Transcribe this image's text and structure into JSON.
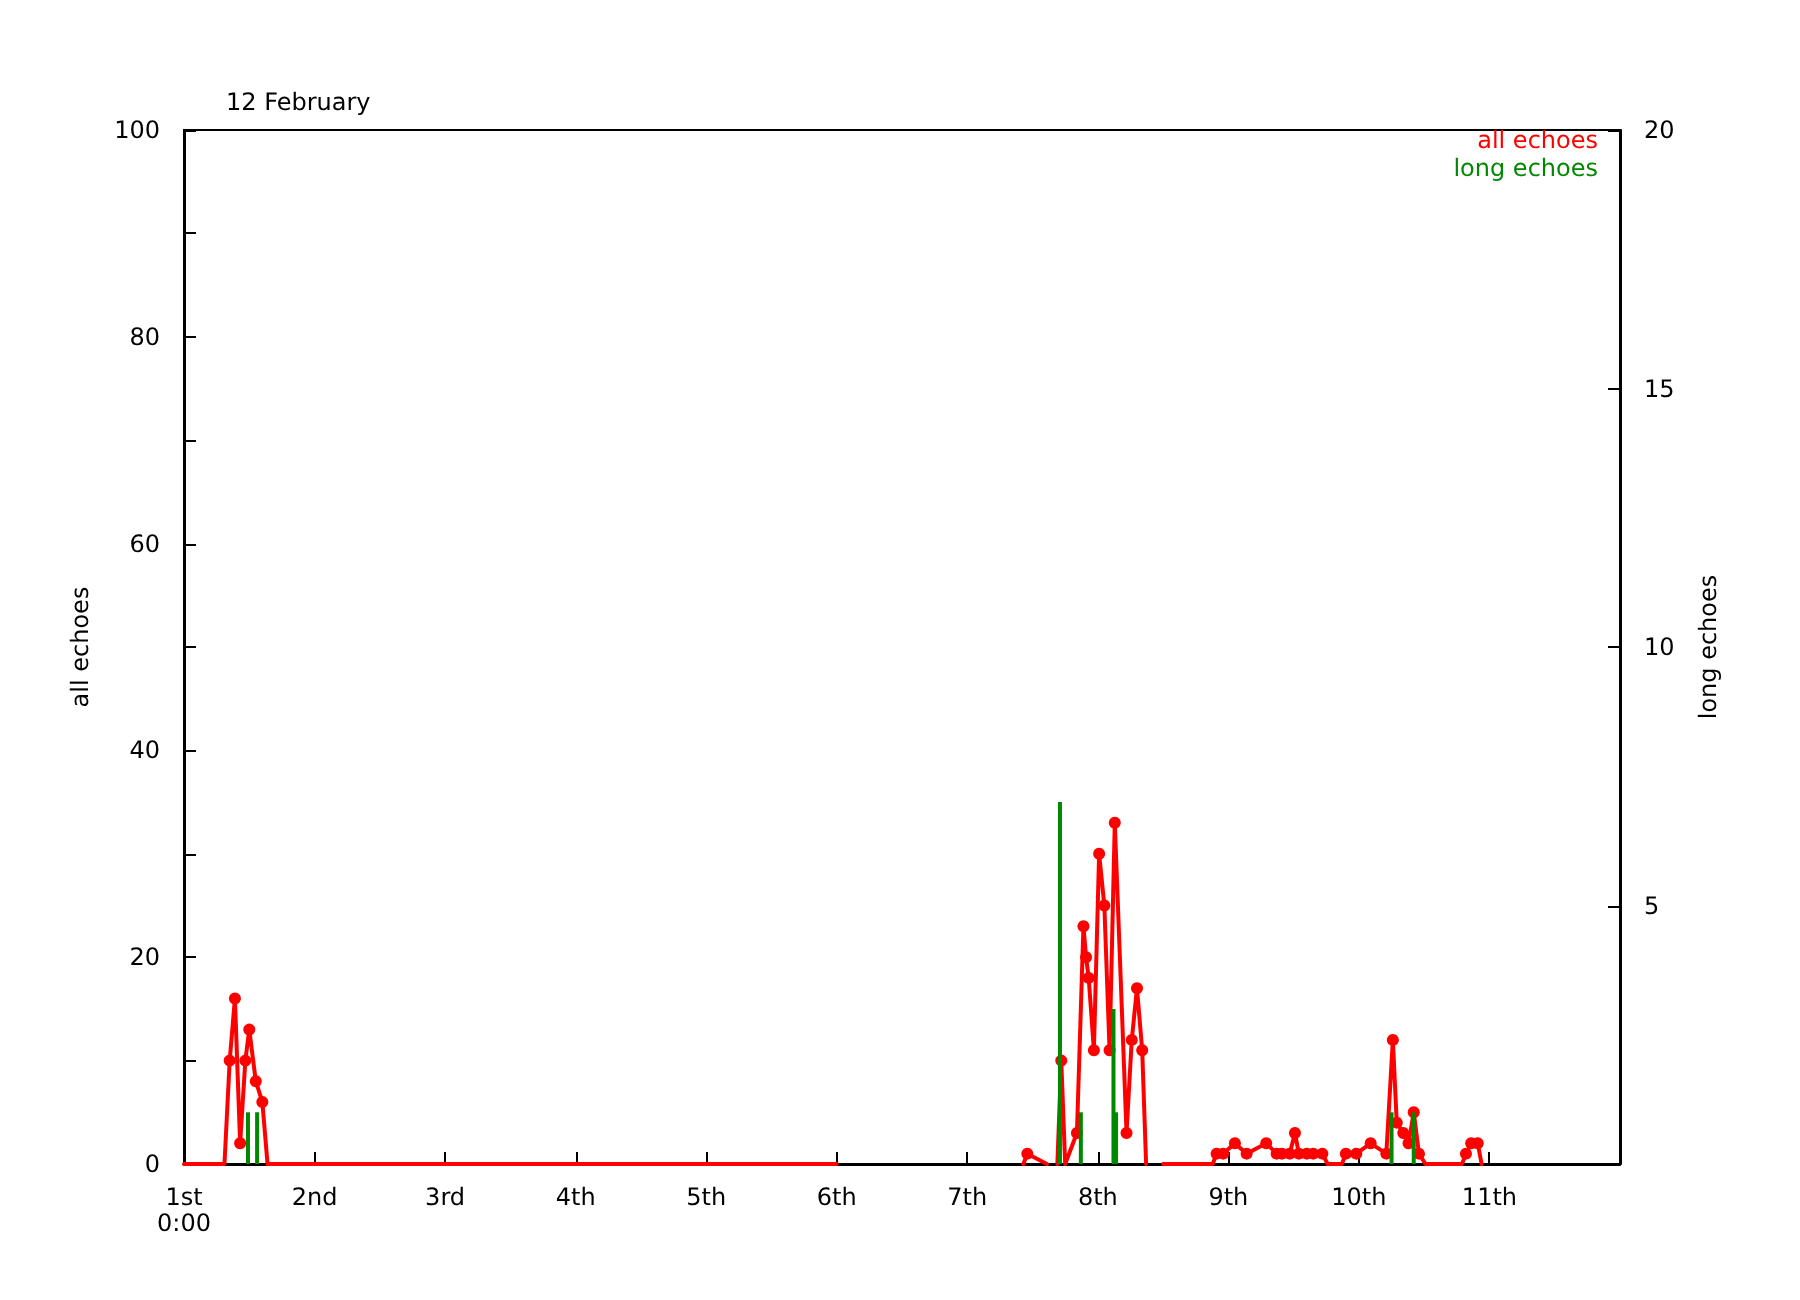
{
  "chart_data": {
    "type": "line",
    "title": "12 February",
    "ylabel": "all echoes",
    "y2label": "long echoes",
    "xlim": [
      1,
      12
    ],
    "xticks": [
      {
        "value": 1,
        "label": "1st\n0:00"
      },
      {
        "value": 2,
        "label": "2nd"
      },
      {
        "value": 3,
        "label": "3rd"
      },
      {
        "value": 4,
        "label": "4th"
      },
      {
        "value": 5,
        "label": "5th"
      },
      {
        "value": 6,
        "label": "6th"
      },
      {
        "value": 7,
        "label": "7th"
      },
      {
        "value": 8,
        "label": "8th"
      },
      {
        "value": 9,
        "label": "9th"
      },
      {
        "value": 10,
        "label": "10th"
      },
      {
        "value": 11,
        "label": "11th"
      }
    ],
    "ylim": [
      0,
      100
    ],
    "yticks": [
      0,
      {
        "value": 10,
        "label": null
      },
      20,
      {
        "value": 30,
        "label": null
      },
      40,
      {
        "value": 50,
        "label": null
      },
      60,
      {
        "value": 70,
        "label": null
      },
      80,
      {
        "value": 90,
        "label": null
      },
      100
    ],
    "y2lim": [
      0,
      20
    ],
    "y2ticks": [
      5,
      10,
      15,
      20
    ],
    "grid": false,
    "legend": "top right",
    "marker": "circle",
    "line_style": "solid",
    "series": [
      {
        "name": "all echoes",
        "color": "#ff0000",
        "x": [
          1,
          1.31,
          1.35,
          1.39,
          1.43,
          1.47,
          1.5,
          1.55,
          1.6,
          1.64,
          6.0,
          6.01,
          7.43,
          7.46,
          7.61,
          7.62,
          7.69,
          7.72,
          7.75,
          7.84,
          7.89,
          7.91,
          7.93,
          7.97,
          8.01,
          8.05,
          8.09,
          8.13,
          8.22,
          8.26,
          8.3,
          8.34,
          8.37,
          8.38,
          8.5,
          8.88,
          8.91,
          8.96,
          9.05,
          9.14,
          9.29,
          9.37,
          9.41,
          9.47,
          9.51,
          9.54,
          9.6,
          9.65,
          9.72,
          9.76,
          9.87,
          9.9,
          9.98,
          10.09,
          10.21,
          10.26,
          10.29,
          10.34,
          10.38,
          10.42,
          10.46,
          10.51,
          10.79,
          10.82,
          10.86,
          10.91,
          10.94
        ],
        "values": [
          0,
          0,
          10,
          16,
          2,
          10,
          13,
          8,
          6,
          0,
          0,
          null,
          0,
          1,
          0,
          null,
          0,
          10,
          0,
          3,
          23,
          20,
          18,
          11,
          30,
          25,
          11,
          33,
          3,
          12,
          17,
          11,
          0,
          null,
          0,
          0,
          1,
          1,
          2,
          1,
          2,
          1,
          1,
          1,
          3,
          1,
          1,
          1,
          1,
          0,
          0,
          1,
          1,
          2,
          1,
          12,
          4,
          3,
          2,
          5,
          1,
          0,
          0,
          1,
          2,
          2,
          0
        ]
      },
      {
        "name": "long echoes",
        "type": "bar",
        "axis": "y2",
        "color": "#008800",
        "x": [
          1.49,
          1.56,
          7.71,
          7.87,
          8.12,
          8.14,
          10.25,
          10.42
        ],
        "values": [
          1,
          1,
          7,
          1,
          3,
          1,
          1,
          1
        ]
      }
    ]
  }
}
